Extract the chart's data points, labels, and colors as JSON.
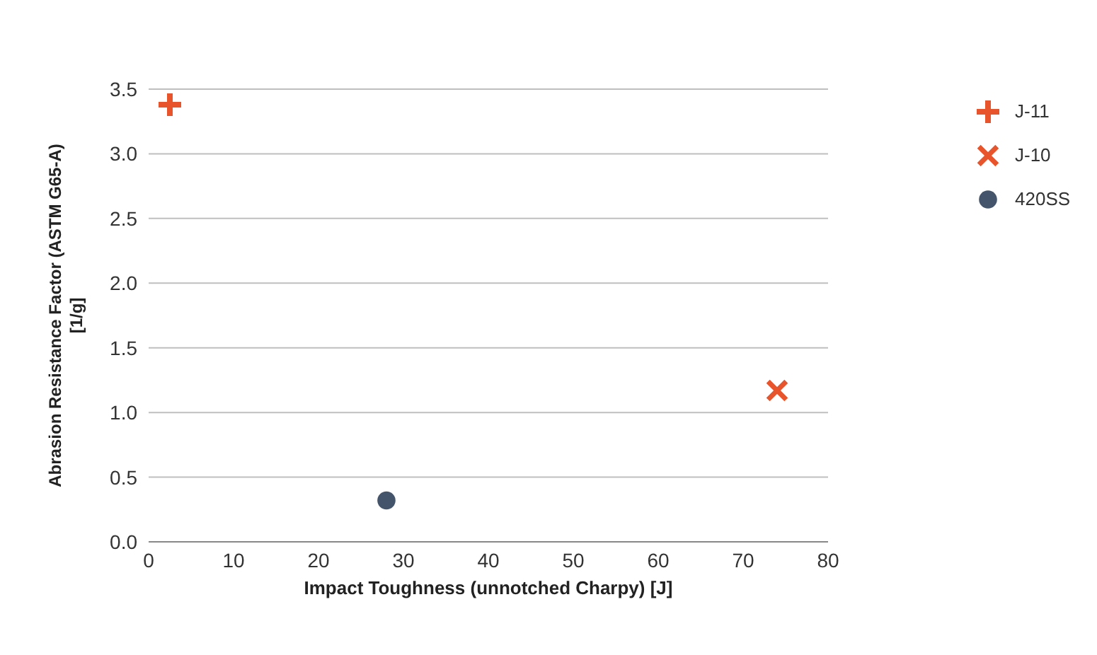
{
  "chart_data": {
    "type": "scatter",
    "xlabel": "Impact Toughness (unnotched Charpy) [J]",
    "ylabel": "Abrasion Resistance Factor (ASTM G65-A)\n[1/g]",
    "xlim": [
      0,
      80
    ],
    "xticks": [
      0,
      10,
      20,
      30,
      40,
      50,
      60,
      70,
      80
    ],
    "ylim": [
      0,
      3.5
    ],
    "yticks": [
      {
        "value": 0,
        "label": "0.0"
      },
      {
        "value": 0.5,
        "label": "0.5"
      },
      {
        "value": 1,
        "label": "1.0"
      },
      {
        "value": 1.5,
        "label": "1.5"
      },
      {
        "value": 2,
        "label": "2.0"
      },
      {
        "value": 2.5,
        "label": "2.5"
      },
      {
        "value": 3,
        "label": "3.0"
      },
      {
        "value": 3.5,
        "label": "3.5"
      }
    ],
    "grid": "y",
    "legend": "top right",
    "series": [
      {
        "name": "J-11",
        "color": "#e8542b",
        "marker": "plus",
        "x": [
          2.5
        ],
        "values": [
          3.38
        ]
      },
      {
        "name": "J-10",
        "color": "#e8542b",
        "marker": "cross",
        "x": [
          74
        ],
        "values": [
          1.17
        ]
      },
      {
        "name": "420SS",
        "color": "#44546a",
        "marker": "circle",
        "x": [
          28
        ],
        "values": [
          0.32
        ]
      }
    ]
  }
}
